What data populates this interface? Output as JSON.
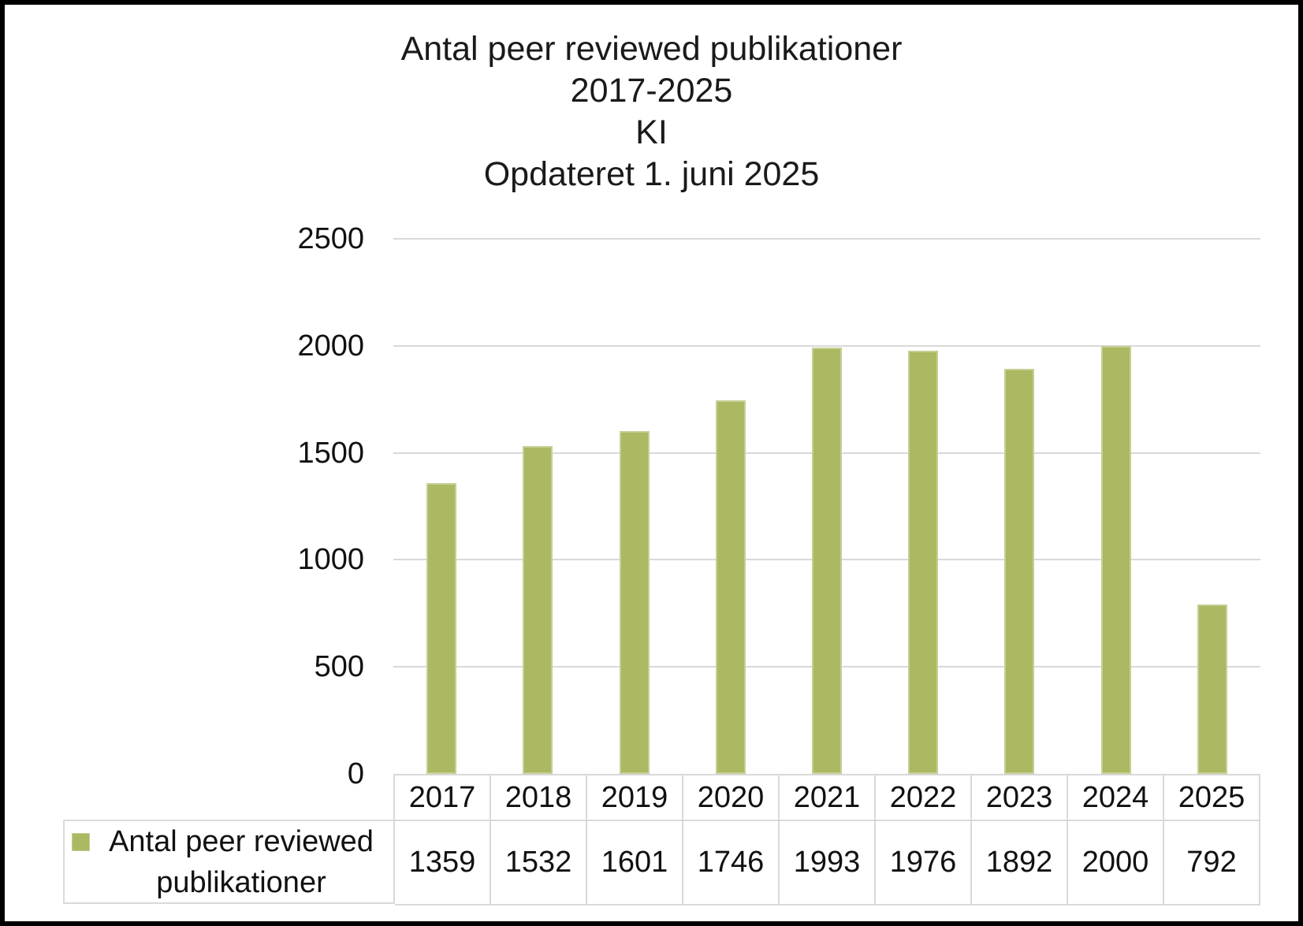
{
  "title": {
    "lines": [
      "Antal peer reviewed publikationer",
      "2017-2025",
      "KI",
      "Opdateret 1. juni 2025"
    ]
  },
  "chart_data": {
    "type": "bar",
    "title": "Antal peer reviewed publikationer 2017-2025 KI Opdateret 1. juni 2025",
    "categories": [
      "2017",
      "2018",
      "2019",
      "2020",
      "2021",
      "2022",
      "2023",
      "2024",
      "2025"
    ],
    "series": [
      {
        "name": "Antal peer reviewed publikationer",
        "values": [
          1359,
          1532,
          1601,
          1746,
          1993,
          1976,
          1892,
          2000,
          792
        ]
      }
    ],
    "xlabel": "",
    "ylabel": "",
    "ylim": [
      0,
      2500
    ],
    "yticks": [
      0,
      500,
      1000,
      1500,
      2000,
      2500
    ],
    "grid": true,
    "legend_position": "bottom-left-data-table",
    "colors": {
      "bar_fill": "#acb862",
      "bar_border": "#c7cf95",
      "gridline": "#d9d9d9",
      "table_border": "#d9d9d9",
      "frame": "#000000",
      "background": "#ffffff",
      "text": "#111111"
    }
  },
  "legend": {
    "marker_icon": "square-icon",
    "label": "Antal peer reviewed publikationer"
  }
}
